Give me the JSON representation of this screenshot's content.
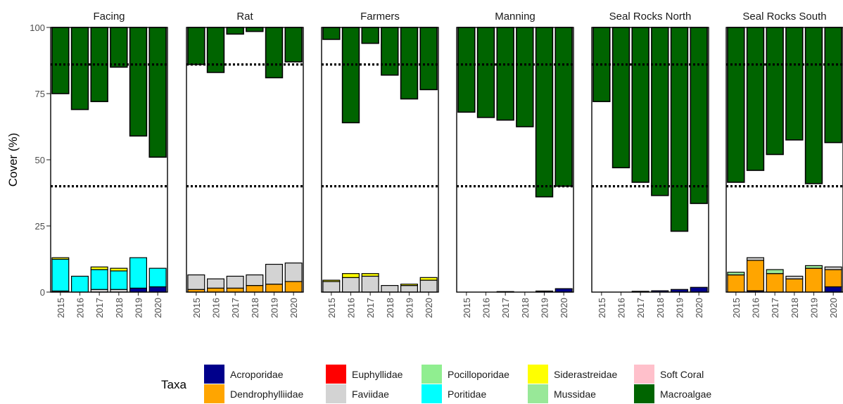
{
  "chart_data": {
    "type": "bar",
    "stacking": "coral taxa stacked from 0; macroalgae hangs from 100",
    "ylabel": "Cover (%)",
    "ylim": [
      0,
      100
    ],
    "yticks": [
      0,
      25,
      50,
      75,
      100
    ],
    "categories": [
      "2015",
      "2016",
      "2017",
      "2018",
      "2019",
      "2020"
    ],
    "grid": false,
    "legend_position": "bottom",
    "legend": {
      "title": "Taxa",
      "items": [
        {
          "name": "Acroporidae",
          "color": "#00008B"
        },
        {
          "name": "Dendrophylliidae",
          "color": "#FFA500"
        },
        {
          "name": "Euphyllidae",
          "color": "#FF0000"
        },
        {
          "name": "Faviidae",
          "color": "#D3D3D3"
        },
        {
          "name": "Pocilloporidae",
          "color": "#90EE90"
        },
        {
          "name": "Poritidae",
          "color": "#00FFFF"
        },
        {
          "name": "Siderastreidae",
          "color": "#FFFF00"
        },
        {
          "name": "Mussidae",
          "color": "#98E898"
        },
        {
          "name": "Soft Coral",
          "color": "#FFC0CB"
        },
        {
          "name": "Macroalgae",
          "color": "#006400"
        }
      ]
    },
    "reference_lines": [
      86,
      40
    ],
    "panels": [
      {
        "name": "Facing",
        "coral": [
          {
            "Poritidae": 12,
            "Siderastreidae": 0.6,
            "Faviidae": 0.4
          },
          {
            "Poritidae": 6
          },
          {
            "Poritidae": 7.5,
            "Faviidae": 1,
            "Siderastreidae": 1
          },
          {
            "Poritidae": 7,
            "Faviidae": 1,
            "Siderastreidae": 1
          },
          {
            "Acroporidae": 1.5,
            "Poritidae": 11.5
          },
          {
            "Acroporidae": 2,
            "Poritidae": 7
          }
        ],
        "macroalgae": [
          25,
          31,
          28,
          15,
          41,
          49
        ]
      },
      {
        "name": "Rat",
        "coral": [
          {
            "Dendrophylliidae": 1,
            "Faviidae": 5.5
          },
          {
            "Dendrophylliidae": 1.5,
            "Faviidae": 3.5
          },
          {
            "Dendrophylliidae": 1.5,
            "Faviidae": 4.5
          },
          {
            "Dendrophylliidae": 2.5,
            "Faviidae": 4
          },
          {
            "Dendrophylliidae": 3,
            "Faviidae": 7.5
          },
          {
            "Dendrophylliidae": 4,
            "Faviidae": 7
          }
        ],
        "macroalgae": [
          14,
          17,
          2.5,
          1.5,
          19,
          13
        ]
      },
      {
        "name": "Farmers",
        "coral": [
          {
            "Faviidae": 4,
            "Siderastreidae": 0.5
          },
          {
            "Faviidae": 5.5,
            "Siderastreidae": 1.5
          },
          {
            "Faviidae": 6,
            "Siderastreidae": 1
          },
          {
            "Faviidae": 2.5
          },
          {
            "Faviidae": 2.5,
            "Siderastreidae": 0.5
          },
          {
            "Faviidae": 4.5,
            "Siderastreidae": 1
          }
        ],
        "macroalgae": [
          4.5,
          36,
          6,
          18,
          27,
          23.5
        ]
      },
      {
        "name": "Manning",
        "coral": [
          {},
          {},
          {
            "Acroporidae": 0.2
          },
          {},
          {
            "Acroporidae": 0.4
          },
          {
            "Acroporidae": 1.3
          }
        ],
        "macroalgae": [
          32,
          34,
          35,
          37.5,
          64,
          60
        ]
      },
      {
        "name": "Seal Rocks North",
        "coral": [
          {},
          {},
          {
            "Acroporidae": 0.3
          },
          {
            "Acroporidae": 0.5
          },
          {
            "Acroporidae": 1
          },
          {
            "Acroporidae": 1.8
          }
        ],
        "macroalgae": [
          28,
          53,
          58.5,
          63.5,
          77,
          66.5
        ]
      },
      {
        "name": "Seal Rocks South",
        "coral": [
          {
            "Dendrophylliidae": 6.5,
            "Mussidae": 1
          },
          {
            "Acroporidae": 0.5,
            "Dendrophylliidae": 11.5,
            "Faviidae": 1
          },
          {
            "Dendrophylliidae": 7,
            "Mussidae": 1.5
          },
          {
            "Dendrophylliidae": 5,
            "Faviidae": 1
          },
          {
            "Dendrophylliidae": 9,
            "Mussidae": 1
          },
          {
            "Acroporidae": 2,
            "Dendrophylliidae": 6.5,
            "Faviidae": 1
          }
        ],
        "macroalgae": [
          58.5,
          54,
          48,
          42.5,
          59,
          43.5
        ]
      }
    ]
  }
}
